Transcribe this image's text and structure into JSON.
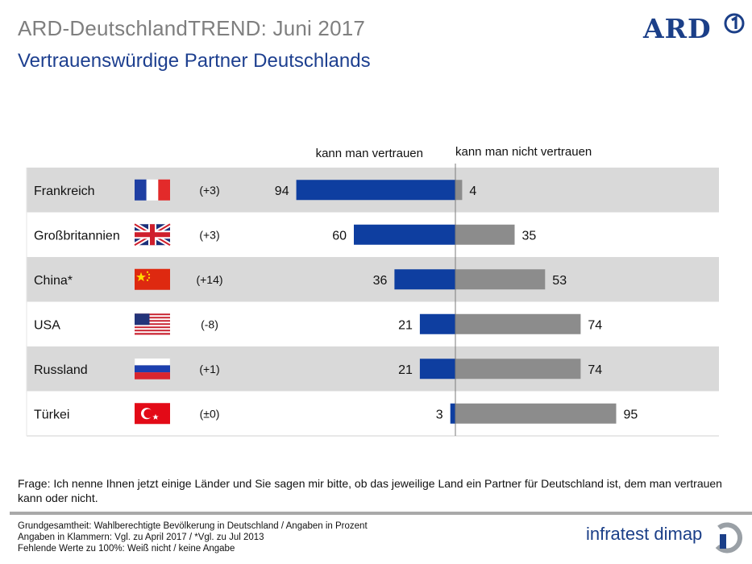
{
  "header": {
    "survey_title": "ARD-DeutschlandTREND: Juni 2017",
    "subtitle": "Vertrauenswürdige Partner Deutschlands",
    "logo_text": "ARD"
  },
  "chart_data": {
    "type": "bar",
    "orientation": "horizontal-diverging",
    "title": "Vertrauenswürdige Partner Deutschlands",
    "column_headers": {
      "trust": "kann man vertrauen",
      "no_trust": "kann man nicht vertrauen"
    },
    "categories": [
      "Frankreich",
      "Großbritannien",
      "China*",
      "USA",
      "Russland",
      "Türkei"
    ],
    "changes": [
      "(+3)",
      "(+3)",
      "(+14)",
      "(-8)",
      "(+1)",
      "(±0)"
    ],
    "flags": [
      "flag-france-icon",
      "flag-uk-icon",
      "flag-china-icon",
      "flag-usa-icon",
      "flag-russia-icon",
      "flag-turkey-icon"
    ],
    "series": [
      {
        "name": "kann man vertrauen",
        "color": "#0e3ea0",
        "values": [
          94,
          60,
          36,
          21,
          21,
          3
        ]
      },
      {
        "name": "kann man nicht vertrauen",
        "color": "#8c8c8c",
        "values": [
          4,
          35,
          53,
          74,
          74,
          95
        ]
      }
    ],
    "unit": "Prozent",
    "xlim": [
      0,
      100
    ],
    "row_colors": [
      "#d9d9d9",
      "#ffffff"
    ]
  },
  "footer": {
    "question": "Frage: Ich nenne Ihnen jetzt einige Länder und Sie sagen mir bitte, ob das jeweilige Land ein Partner für Deutschland ist, dem man vertrauen kann oder nicht.",
    "notes": [
      "Grundgesamtheit: Wahlberechtigte Bevölkerung in Deutschland / Angaben in Prozent",
      "Angaben in Klammern: Vgl. zu April 2017 / *Vgl. zu Jul 2013",
      "Fehlende Werte zu 100%: Weiß nicht / keine Angabe"
    ],
    "institute": "infratest dimap"
  }
}
